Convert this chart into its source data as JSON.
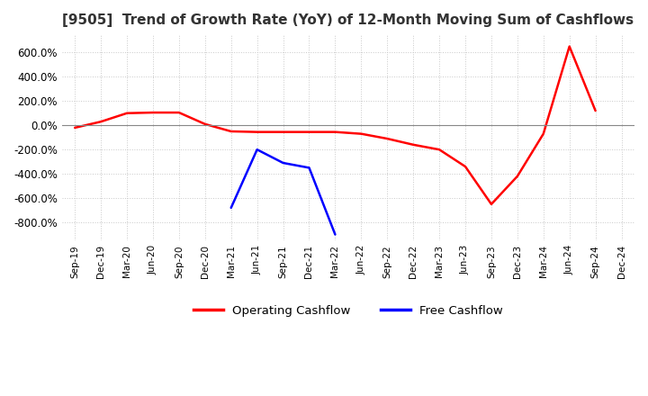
{
  "title": "[9505]  Trend of Growth Rate (YoY) of 12-Month Moving Sum of Cashflows",
  "title_fontsize": 11,
  "ylim": [
    -950,
    750
  ],
  "yticks": [
    -800,
    -600,
    -400,
    -200,
    0,
    200,
    400,
    600
  ],
  "legend_labels": [
    "Operating Cashflow",
    "Free Cashflow"
  ],
  "legend_colors": [
    "#ff0000",
    "#0000ff"
  ],
  "background_color": "#ffffff",
  "grid_color": "#c8c8c8",
  "x_labels": [
    "Sep-19",
    "Dec-19",
    "Mar-20",
    "Jun-20",
    "Sep-20",
    "Dec-20",
    "Mar-21",
    "Jun-21",
    "Sep-21",
    "Dec-21",
    "Mar-22",
    "Jun-22",
    "Sep-22",
    "Dec-22",
    "Mar-23",
    "Jun-23",
    "Sep-23",
    "Dec-23",
    "Mar-24",
    "Jun-24",
    "Sep-24",
    "Dec-24"
  ],
  "operating_cashflow": [
    -20,
    30,
    100,
    105,
    105,
    10,
    -50,
    -55,
    -55,
    -55,
    -55,
    -70,
    -110,
    -160,
    -200,
    -340,
    -650,
    -420,
    -70,
    650,
    120,
    null
  ],
  "free_cashflow": [
    null,
    null,
    null,
    null,
    null,
    null,
    -680,
    -200,
    -310,
    -350,
    -900,
    null,
    null,
    null,
    null,
    null,
    null,
    null,
    null,
    null,
    null,
    null
  ]
}
